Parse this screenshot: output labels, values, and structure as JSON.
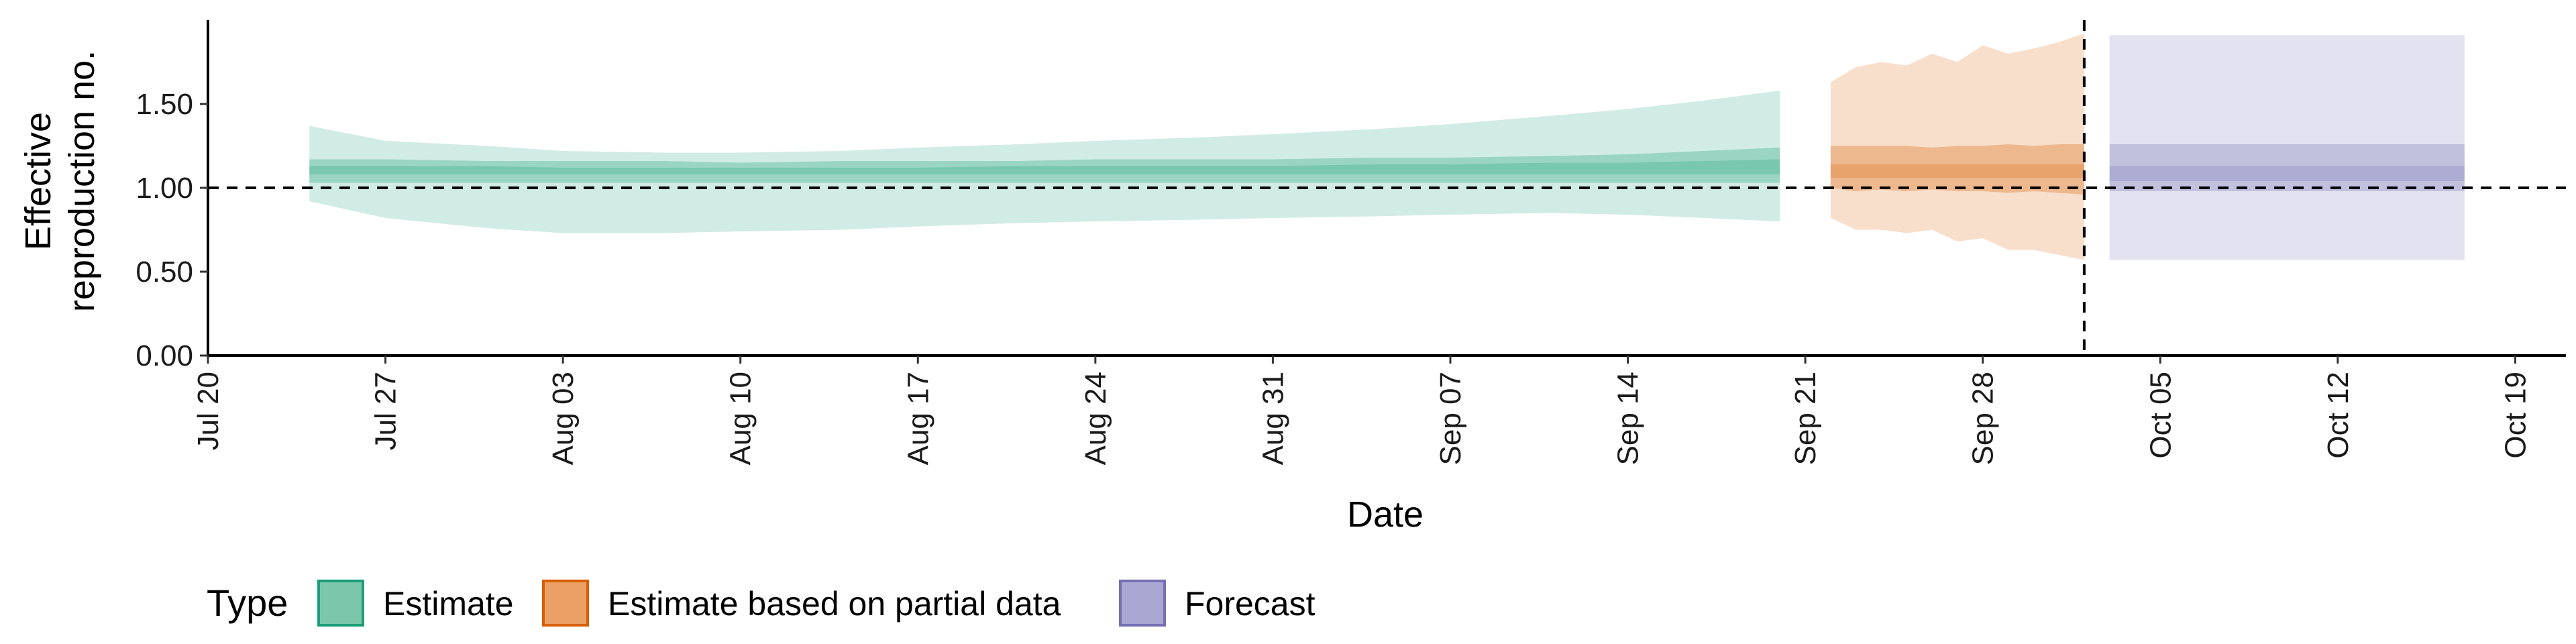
{
  "chart_data": {
    "type": "area",
    "xlabel": "Date",
    "ylabel_lines": [
      "Effective",
      "reproduction no."
    ],
    "ylim": [
      0,
      2.0
    ],
    "y_ticks": [
      0.0,
      0.5,
      1.0,
      1.5
    ],
    "y_tick_labels": [
      "0.00",
      "0.50",
      "1.00",
      "1.50"
    ],
    "x_domain": [
      "2020-07-20",
      "2020-10-21"
    ],
    "x_ticks": [
      "2020-07-20",
      "2020-07-27",
      "2020-08-03",
      "2020-08-10",
      "2020-08-17",
      "2020-08-24",
      "2020-08-31",
      "2020-09-07",
      "2020-09-14",
      "2020-09-21",
      "2020-09-28",
      "2020-10-05",
      "2020-10-12",
      "2020-10-19"
    ],
    "x_tick_labels": [
      "Jul 20",
      "Jul 27",
      "Aug 03",
      "Aug 10",
      "Aug 17",
      "Aug 24",
      "Aug 31",
      "Sep 07",
      "Sep 14",
      "Sep 21",
      "Sep 28",
      "Oct 05",
      "Oct 12",
      "Oct 19"
    ],
    "reference_hline": 1.0,
    "reference_vline": "2020-10-02",
    "grid": false,
    "legend": {
      "title": "Type",
      "placement": "bottom-left",
      "items": [
        {
          "label": "Estimate",
          "fill": "#7cc6ac",
          "stroke": "#1b9e77"
        },
        {
          "label": "Estimate based on partial data",
          "fill": "#eba066",
          "stroke": "#d95f02"
        },
        {
          "label": "Forecast",
          "fill": "#aaa8d2",
          "stroke": "#7570b3"
        }
      ]
    },
    "series": [
      {
        "name": "Estimate",
        "color": "#1b9e77",
        "x": [
          "2020-07-24",
          "2020-07-27",
          "2020-07-31",
          "2020-08-03",
          "2020-08-07",
          "2020-08-10",
          "2020-08-14",
          "2020-08-17",
          "2020-08-21",
          "2020-08-24",
          "2020-08-28",
          "2020-08-31",
          "2020-09-04",
          "2020-09-07",
          "2020-09-11",
          "2020-09-14",
          "2020-09-17",
          "2020-09-20"
        ],
        "lower90": [
          0.92,
          0.82,
          0.76,
          0.73,
          0.73,
          0.74,
          0.75,
          0.77,
          0.79,
          0.8,
          0.81,
          0.82,
          0.83,
          0.84,
          0.85,
          0.84,
          0.82,
          0.8
        ],
        "upper90": [
          1.37,
          1.28,
          1.25,
          1.22,
          1.21,
          1.21,
          1.22,
          1.24,
          1.26,
          1.28,
          1.3,
          1.32,
          1.35,
          1.38,
          1.43,
          1.47,
          1.52,
          1.58
        ],
        "lower50": [
          1.03,
          1.03,
          1.03,
          1.03,
          1.03,
          1.03,
          1.03,
          1.03,
          1.03,
          1.03,
          1.03,
          1.03,
          1.03,
          1.03,
          1.03,
          1.03,
          1.03,
          1.03
        ],
        "upper50": [
          1.17,
          1.17,
          1.16,
          1.16,
          1.16,
          1.15,
          1.16,
          1.16,
          1.16,
          1.17,
          1.17,
          1.17,
          1.18,
          1.18,
          1.19,
          1.2,
          1.22,
          1.24
        ],
        "lower20": [
          1.08,
          1.08,
          1.08,
          1.08,
          1.08,
          1.08,
          1.08,
          1.08,
          1.08,
          1.08,
          1.08,
          1.08,
          1.08,
          1.08,
          1.08,
          1.08,
          1.08,
          1.08
        ],
        "upper20": [
          1.13,
          1.13,
          1.13,
          1.12,
          1.12,
          1.12,
          1.12,
          1.12,
          1.13,
          1.13,
          1.13,
          1.13,
          1.14,
          1.14,
          1.15,
          1.15,
          1.16,
          1.17
        ]
      },
      {
        "name": "Estimate based on partial data",
        "color": "#d95f02",
        "x": [
          "2020-09-22",
          "2020-09-23",
          "2020-09-24",
          "2020-09-25",
          "2020-09-26",
          "2020-09-27",
          "2020-09-28",
          "2020-09-29",
          "2020-09-30",
          "2020-10-01",
          "2020-10-02"
        ],
        "lower90": [
          0.82,
          0.75,
          0.75,
          0.73,
          0.75,
          0.68,
          0.7,
          0.63,
          0.63,
          0.6,
          0.57
        ],
        "upper90": [
          1.63,
          1.72,
          1.75,
          1.73,
          1.8,
          1.75,
          1.85,
          1.8,
          1.83,
          1.87,
          1.92
        ],
        "lower50": [
          1.0,
          0.98,
          0.99,
          0.98,
          0.99,
          0.98,
          0.98,
          0.97,
          0.98,
          0.97,
          0.96
        ],
        "upper50": [
          1.25,
          1.25,
          1.25,
          1.25,
          1.24,
          1.25,
          1.25,
          1.26,
          1.25,
          1.26,
          1.26
        ],
        "lower20": [
          1.06,
          1.06,
          1.06,
          1.06,
          1.06,
          1.06,
          1.06,
          1.06,
          1.06,
          1.06,
          1.06
        ],
        "upper20": [
          1.14,
          1.14,
          1.14,
          1.14,
          1.14,
          1.14,
          1.14,
          1.14,
          1.14,
          1.14,
          1.14
        ]
      },
      {
        "name": "Forecast",
        "color": "#7570b3",
        "x": [
          "2020-10-03",
          "2020-10-17"
        ],
        "lower90": [
          0.57,
          0.57
        ],
        "upper90": [
          1.91,
          1.91
        ],
        "lower50": [
          0.98,
          0.98
        ],
        "upper50": [
          1.26,
          1.26
        ],
        "lower20": [
          1.04,
          1.04
        ],
        "upper20": [
          1.13,
          1.13
        ]
      }
    ]
  }
}
